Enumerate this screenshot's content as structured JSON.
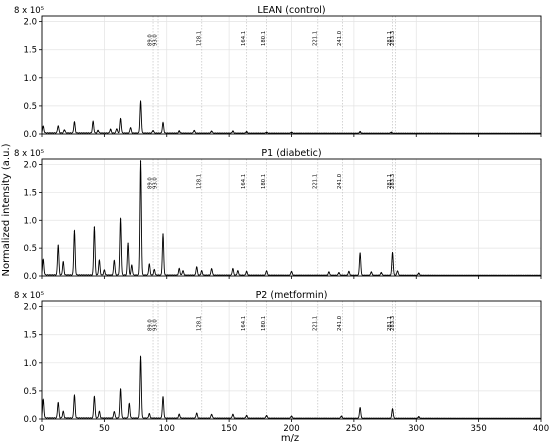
{
  "figure": {
    "ylabel": "Normalized intensity (a.u.)",
    "xlabel": "m/z"
  },
  "chart_data": [
    {
      "type": "line",
      "title": "LEAN (control)",
      "scale_label": "8 x 10⁵",
      "xlim": [
        0,
        400
      ],
      "ylim": [
        0,
        2.1
      ],
      "xticks": [
        "0",
        "50",
        "100",
        "150",
        "200",
        "250",
        "300",
        "350",
        "400"
      ],
      "yticks": [
        "0.0",
        "0.5",
        "1.0",
        "1.5",
        "2.0"
      ],
      "show_xticklabels": false,
      "grid": true,
      "annotations": [
        {
          "x": 89.0,
          "label": "89.0"
        },
        {
          "x": 93.0,
          "label": "93.0"
        },
        {
          "x": 128.1,
          "label": "128.1"
        },
        {
          "x": 164.1,
          "label": "164.1"
        },
        {
          "x": 180.1,
          "label": "180.1"
        },
        {
          "x": 221.1,
          "label": "221.1"
        },
        {
          "x": 241.0,
          "label": "241.0"
        },
        {
          "x": 281.1,
          "label": "281.1"
        },
        {
          "x": 283.3,
          "label": "283.3"
        }
      ],
      "peaks": [
        {
          "x": 1,
          "y": 0.12
        },
        {
          "x": 13,
          "y": 0.13
        },
        {
          "x": 18,
          "y": 0.06
        },
        {
          "x": 26,
          "y": 0.2
        },
        {
          "x": 41,
          "y": 0.21
        },
        {
          "x": 45,
          "y": 0.05
        },
        {
          "x": 55,
          "y": 0.07
        },
        {
          "x": 60,
          "y": 0.08
        },
        {
          "x": 63,
          "y": 0.26
        },
        {
          "x": 71,
          "y": 0.1
        },
        {
          "x": 79,
          "y": 0.57
        },
        {
          "x": 89,
          "y": 0.05
        },
        {
          "x": 97,
          "y": 0.19
        },
        {
          "x": 110,
          "y": 0.04
        },
        {
          "x": 122,
          "y": 0.05
        },
        {
          "x": 136,
          "y": 0.04
        },
        {
          "x": 153,
          "y": 0.04
        },
        {
          "x": 164,
          "y": 0.03
        },
        {
          "x": 180,
          "y": 0.02
        },
        {
          "x": 200,
          "y": 0.02
        },
        {
          "x": 255,
          "y": 0.03
        },
        {
          "x": 280,
          "y": 0.02
        }
      ]
    },
    {
      "type": "line",
      "title": "P1 (diabetic)",
      "scale_label": "8 x 10⁵",
      "xlim": [
        0,
        400
      ],
      "ylim": [
        0,
        2.1
      ],
      "xticks": [
        "0",
        "50",
        "100",
        "150",
        "200",
        "250",
        "300",
        "350",
        "400"
      ],
      "yticks": [
        "0.0",
        "0.5",
        "1.0",
        "1.5",
        "2.0"
      ],
      "show_xticklabels": false,
      "grid": true,
      "annotations": [
        {
          "x": 89.0,
          "label": "89.0"
        },
        {
          "x": 93.0,
          "label": "93.0"
        },
        {
          "x": 128.1,
          "label": "128.1"
        },
        {
          "x": 164.1,
          "label": "164.1"
        },
        {
          "x": 180.1,
          "label": "180.1"
        },
        {
          "x": 221.1,
          "label": "221.1"
        },
        {
          "x": 241.0,
          "label": "241.0"
        },
        {
          "x": 281.1,
          "label": "281.1"
        },
        {
          "x": 283.3,
          "label": "283.3"
        }
      ],
      "peaks": [
        {
          "x": 1,
          "y": 0.28
        },
        {
          "x": 13,
          "y": 0.54
        },
        {
          "x": 17,
          "y": 0.24
        },
        {
          "x": 26,
          "y": 0.8
        },
        {
          "x": 42,
          "y": 0.87
        },
        {
          "x": 46,
          "y": 0.27
        },
        {
          "x": 50,
          "y": 0.09
        },
        {
          "x": 58,
          "y": 0.27
        },
        {
          "x": 63,
          "y": 1.02
        },
        {
          "x": 69,
          "y": 0.58
        },
        {
          "x": 72,
          "y": 0.18
        },
        {
          "x": 79,
          "y": 2.05
        },
        {
          "x": 86,
          "y": 0.2
        },
        {
          "x": 90,
          "y": 0.1
        },
        {
          "x": 97,
          "y": 0.74
        },
        {
          "x": 110,
          "y": 0.12
        },
        {
          "x": 113,
          "y": 0.08
        },
        {
          "x": 124,
          "y": 0.15
        },
        {
          "x": 128,
          "y": 0.08
        },
        {
          "x": 136,
          "y": 0.12
        },
        {
          "x": 153,
          "y": 0.12
        },
        {
          "x": 157,
          "y": 0.08
        },
        {
          "x": 164,
          "y": 0.07
        },
        {
          "x": 180,
          "y": 0.08
        },
        {
          "x": 200,
          "y": 0.07
        },
        {
          "x": 230,
          "y": 0.06
        },
        {
          "x": 238,
          "y": 0.05
        },
        {
          "x": 246,
          "y": 0.07
        },
        {
          "x": 255,
          "y": 0.4
        },
        {
          "x": 264,
          "y": 0.06
        },
        {
          "x": 272,
          "y": 0.05
        },
        {
          "x": 281,
          "y": 0.41
        },
        {
          "x": 285,
          "y": 0.08
        },
        {
          "x": 302,
          "y": 0.04
        }
      ]
    },
    {
      "type": "line",
      "title": "P2 (metformin)",
      "scale_label": "8 x 10⁵",
      "xlim": [
        0,
        400
      ],
      "ylim": [
        0,
        2.1
      ],
      "xticks": [
        "0",
        "50",
        "100",
        "150",
        "200",
        "250",
        "300",
        "350",
        "400"
      ],
      "yticks": [
        "0.0",
        "0.5",
        "1.0",
        "1.5",
        "2.0"
      ],
      "show_xticklabels": true,
      "grid": true,
      "annotations": [
        {
          "x": 89.0,
          "label": "89.0"
        },
        {
          "x": 93.0,
          "label": "93.0"
        },
        {
          "x": 128.1,
          "label": "128.1"
        },
        {
          "x": 164.1,
          "label": "164.1"
        },
        {
          "x": 180.1,
          "label": "180.1"
        },
        {
          "x": 221.1,
          "label": "221.1"
        },
        {
          "x": 241.0,
          "label": "241.0"
        },
        {
          "x": 281.1,
          "label": "281.1"
        },
        {
          "x": 283.3,
          "label": "283.3"
        }
      ],
      "peaks": [
        {
          "x": 1,
          "y": 0.33
        },
        {
          "x": 13,
          "y": 0.28
        },
        {
          "x": 17,
          "y": 0.12
        },
        {
          "x": 26,
          "y": 0.41
        },
        {
          "x": 42,
          "y": 0.39
        },
        {
          "x": 46,
          "y": 0.12
        },
        {
          "x": 58,
          "y": 0.12
        },
        {
          "x": 63,
          "y": 0.52
        },
        {
          "x": 70,
          "y": 0.26
        },
        {
          "x": 79,
          "y": 1.1
        },
        {
          "x": 86,
          "y": 0.08
        },
        {
          "x": 97,
          "y": 0.38
        },
        {
          "x": 110,
          "y": 0.07
        },
        {
          "x": 124,
          "y": 0.09
        },
        {
          "x": 136,
          "y": 0.07
        },
        {
          "x": 153,
          "y": 0.07
        },
        {
          "x": 164,
          "y": 0.05
        },
        {
          "x": 180,
          "y": 0.05
        },
        {
          "x": 200,
          "y": 0.04
        },
        {
          "x": 240,
          "y": 0.04
        },
        {
          "x": 255,
          "y": 0.19
        },
        {
          "x": 281,
          "y": 0.17
        },
        {
          "x": 302,
          "y": 0.03
        }
      ]
    }
  ]
}
